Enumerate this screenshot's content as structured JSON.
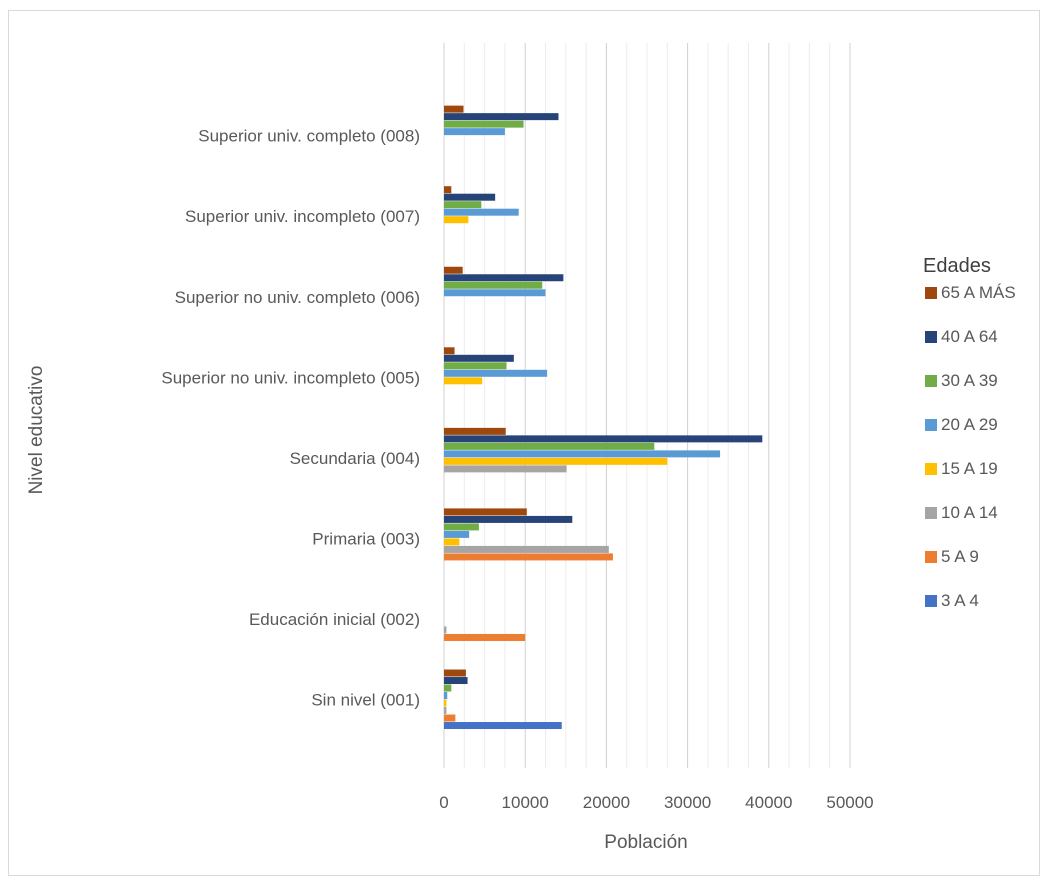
{
  "chart_data": {
    "type": "bar",
    "orientation": "horizontal",
    "xlabel": "Población",
    "ylabel": "Nivel educativo",
    "xlim": [
      0,
      50000
    ],
    "xticks": [
      "0",
      "10000",
      "20000",
      "30000",
      "40000",
      "50000"
    ],
    "grid": true,
    "legend_title": "Edades",
    "legend_position": "right",
    "categories": [
      "Sin nivel (001)",
      "Educación inicial (002)",
      "Primaria (003)",
      "Secundaria (004)",
      "Superior no univ. incompleto (005)",
      "Superior no univ. completo (006)",
      "Superior univ. incompleto (007)",
      "Superior univ. completo (008)"
    ],
    "series": [
      {
        "name": "3 A 4",
        "color": "#4472C4",
        "values": [
          14500,
          0,
          0,
          0,
          0,
          0,
          0,
          0
        ]
      },
      {
        "name": "5 A 9",
        "color": "#ED7D31",
        "values": [
          1400,
          10000,
          20800,
          0,
          0,
          0,
          0,
          0
        ]
      },
      {
        "name": "10 A 14",
        "color": "#A5A5A5",
        "values": [
          300,
          300,
          20300,
          15100,
          0,
          0,
          0,
          0
        ]
      },
      {
        "name": "15 A 19",
        "color": "#FFC000",
        "values": [
          300,
          0,
          1900,
          27500,
          4700,
          0,
          3000,
          0
        ]
      },
      {
        "name": "20 A 29",
        "color": "#5B9BD5",
        "values": [
          400,
          0,
          3100,
          34000,
          12700,
          12500,
          9200,
          7500
        ]
      },
      {
        "name": "30 A 39",
        "color": "#70AD47",
        "values": [
          900,
          0,
          4300,
          25900,
          7700,
          12100,
          4600,
          9800
        ]
      },
      {
        "name": "40 A 64",
        "color": "#264478",
        "values": [
          2900,
          0,
          15800,
          39200,
          8600,
          14700,
          6300,
          14100
        ]
      },
      {
        "name": "65 A MÁS",
        "color": "#9E480E",
        "values": [
          2700,
          0,
          10200,
          7600,
          1300,
          2300,
          900,
          2400
        ]
      }
    ],
    "legend_order": [
      "65 A MÁS",
      "40 A 64",
      "30 A 39",
      "20 A 29",
      "15 A 19",
      "10 A 14",
      "5 A 9",
      "3 A 4"
    ]
  }
}
